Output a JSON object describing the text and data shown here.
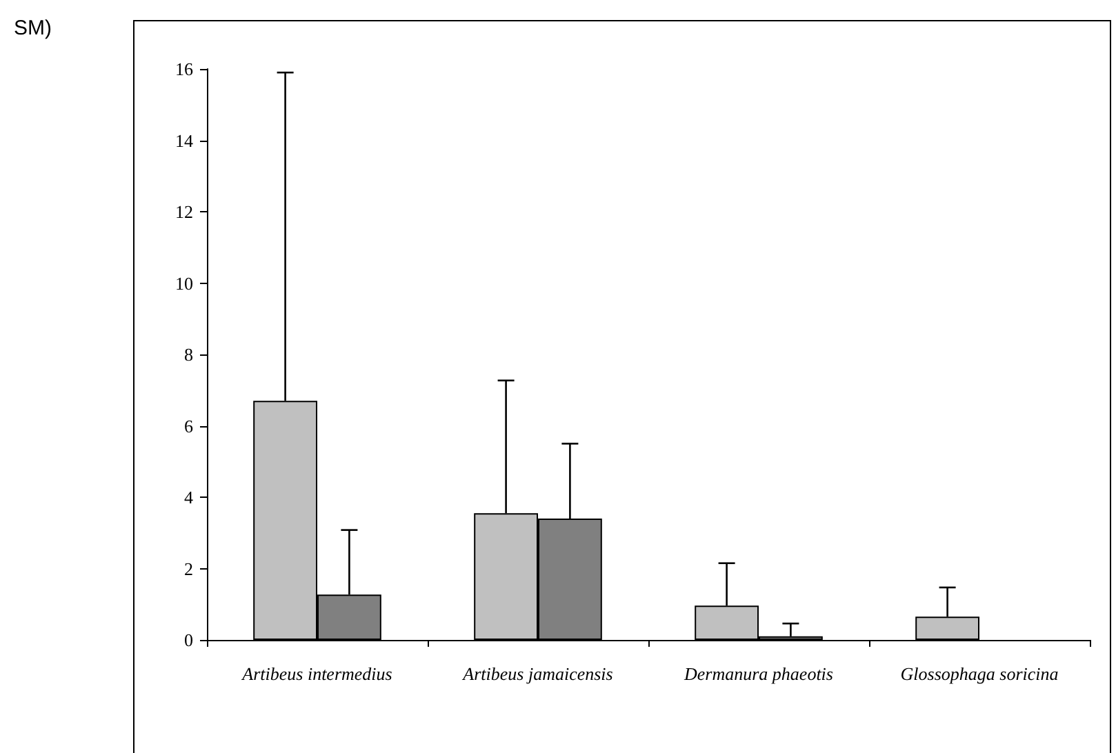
{
  "chart_data": {
    "type": "bar",
    "annotations": [
      "SM)"
    ],
    "categories": [
      "Artibeus intermedius",
      "Artibeus jamaicensis",
      "Dermanura phaeotis",
      "Glossophaga soricina"
    ],
    "series": [
      {
        "color": "#c0c0c0",
        "values": [
          6.7,
          3.55,
          0.96,
          0.65
        ],
        "errors": [
          [
            6.7,
            15.9
          ],
          [
            3.55,
            7.27
          ],
          [
            0.96,
            2.15
          ],
          [
            0.65,
            1.47
          ]
        ]
      },
      {
        "color": "#808080",
        "values": [
          1.27,
          3.4,
          0.1,
          0
        ],
        "errors": [
          [
            1.27,
            3.08
          ],
          [
            3.4,
            5.5
          ],
          [
            0.1,
            0.46
          ],
          null
        ]
      }
    ],
    "ylim": [
      0,
      16
    ],
    "yticks": [
      0,
      2,
      4,
      6,
      8,
      10,
      12,
      14,
      16
    ],
    "grid": false
  }
}
